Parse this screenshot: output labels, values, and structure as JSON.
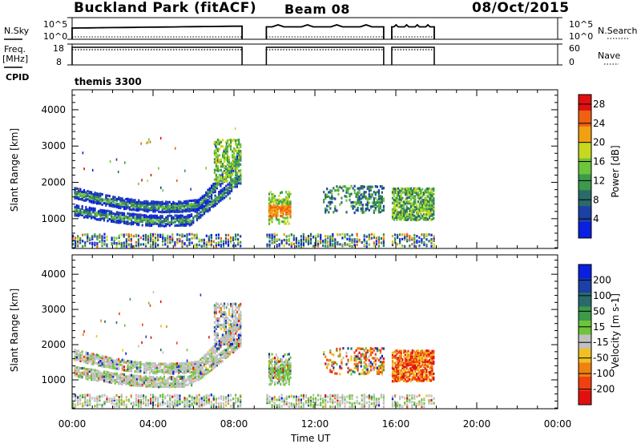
{
  "header": {
    "station": "Buckland Park (fitACF)",
    "beam": "Beam 08",
    "date": "08/Oct/2015"
  },
  "status_panels": {
    "nsky_label": "N.Sky",
    "nsky_hi": "10^5",
    "nsky_lo": "10^0",
    "nsearch_label": "N.Search",
    "nsearch_hi": "10^5",
    "nsearch_lo": "10^0",
    "freq_label": "Freq.",
    "freq_unit": "[MHz]",
    "freq_hi": "18",
    "freq_lo": "8",
    "nave_label": "Nave",
    "nave_hi": "60",
    "nave_lo": "0",
    "cpid_label": "CPID",
    "cpid_value": "themis 3300"
  },
  "chart_data": [
    {
      "type": "heatmap",
      "panel": "power",
      "ylabel": "Slant Range [km]",
      "yticks": [
        "1000",
        "2000",
        "3000",
        "4000"
      ],
      "ylim": [
        180,
        4550
      ],
      "xlim": [
        0,
        24
      ],
      "colorbar_label": "Power [dB]",
      "colorbar_ticks": [
        "4",
        "8",
        "12",
        "16",
        "20",
        "24",
        "28"
      ],
      "colorbar_range": [
        0,
        30
      ],
      "colors": [
        "#0a1fe0",
        "#1c3fa8",
        "#2a6a6a",
        "#3c9a4a",
        "#6ec43a",
        "#c8d820",
        "#f0a010",
        "#f06010",
        "#e01010"
      ],
      "data_intervals_h": [
        [
          0,
          8.4
        ],
        [
          9.6,
          15.4
        ],
        [
          15.8,
          17.9
        ]
      ]
    },
    {
      "type": "heatmap",
      "panel": "velocity",
      "ylabel": "Slant Range [km]",
      "yticks": [
        "1000",
        "2000",
        "3000",
        "4000"
      ],
      "ylim": [
        180,
        4550
      ],
      "xlim": [
        0,
        24
      ],
      "colorbar_label": "Velocity [m s-1]",
      "colorbar_ticks": [
        "200",
        "100",
        "50",
        "15",
        "-15",
        "-50",
        "-100",
        "-200"
      ],
      "colors": [
        "#0a1fe0",
        "#1c3fa8",
        "#2a6a6a",
        "#3c9a4a",
        "#6ec43a",
        "#c0c0c0",
        "#f0c020",
        "#f08010",
        "#f04010",
        "#e01010"
      ],
      "data_intervals_h": [
        [
          0,
          8.4
        ],
        [
          9.6,
          15.4
        ],
        [
          15.8,
          17.9
        ]
      ]
    }
  ],
  "x_axis": {
    "ticks": [
      "00:00",
      "04:00",
      "08:00",
      "12:00",
      "16:00",
      "20:00",
      "00:00"
    ],
    "label": "Time UT"
  }
}
